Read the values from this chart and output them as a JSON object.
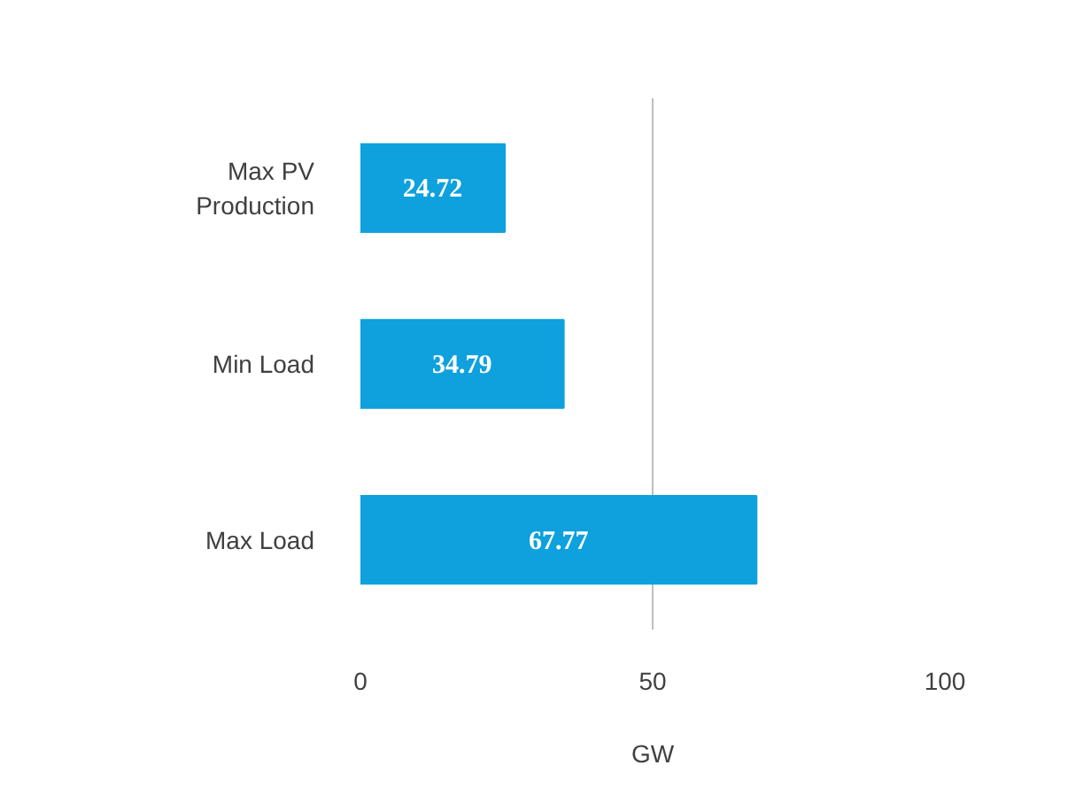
{
  "chart_data": {
    "type": "bar",
    "orientation": "horizontal",
    "categories": [
      "Max PV Production",
      "Min Load",
      "Max Load"
    ],
    "values": [
      24.72,
      34.79,
      67.77
    ],
    "color": "#0ea1dd",
    "xlabel": "GW",
    "xlim": [
      0,
      100
    ],
    "xticks": [
      0,
      50,
      100
    ],
    "grid": "x",
    "data_labels": true
  }
}
